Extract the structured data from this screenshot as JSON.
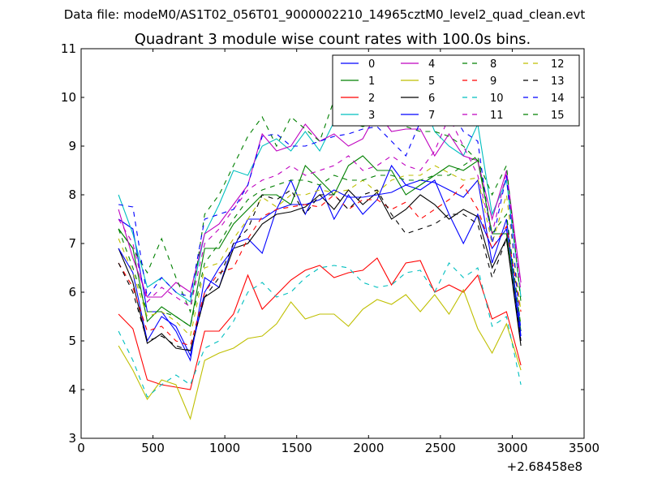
{
  "chart_data": {
    "type": "line",
    "suptitle": "Data file: modeM0/AS1T02_056T01_9000002210_14965cztM0_level2_quad_clean.evt",
    "title": "Quadrant 3 module wise count rates with 100.0s bins.",
    "xlabel": "",
    "ylabel": "",
    "x_offset_label": "+2.68458e8",
    "xlim": [
      0,
      3500
    ],
    "ylim": [
      3,
      11
    ],
    "x_ticks": [
      0,
      500,
      1000,
      1500,
      2000,
      2500,
      3000,
      3500
    ],
    "y_ticks": [
      3,
      4,
      5,
      6,
      7,
      8,
      9,
      10,
      11
    ],
    "legend_position": "top-right",
    "x": [
      260,
      360,
      460,
      560,
      660,
      760,
      860,
      960,
      1060,
      1160,
      1260,
      1360,
      1460,
      1560,
      1660,
      1760,
      1860,
      1960,
      2060,
      2160,
      2260,
      2360,
      2460,
      2560,
      2660,
      2760,
      2860,
      2960,
      3060
    ],
    "series": [
      {
        "name": "0",
        "color": "#0000ff",
        "dash": "solid",
        "values": [
          7.5,
          7.3,
          5.6,
          5.6,
          5.2,
          4.6,
          6.3,
          6.1,
          7.0,
          7.1,
          6.8,
          7.7,
          8.3,
          7.6,
          8.2,
          7.5,
          8.0,
          7.6,
          7.9,
          8.6,
          8.2,
          8.1,
          8.3,
          7.6,
          7.0,
          7.6,
          6.9,
          7.3,
          5.0
        ]
      },
      {
        "name": "1",
        "color": "#008000",
        "dash": "solid",
        "values": [
          7.3,
          6.9,
          5.4,
          5.7,
          5.5,
          5.3,
          6.9,
          6.9,
          7.4,
          7.7,
          8.0,
          8.0,
          7.8,
          8.6,
          8.3,
          8.0,
          8.6,
          8.8,
          8.5,
          8.5,
          8.0,
          8.2,
          8.4,
          8.6,
          8.5,
          8.7,
          7.2,
          7.2,
          5.2
        ]
      },
      {
        "name": "2",
        "color": "#ff0000",
        "dash": "solid",
        "values": [
          5.55,
          5.25,
          4.2,
          4.1,
          4.05,
          4.0,
          5.2,
          5.2,
          5.55,
          6.35,
          5.65,
          5.95,
          6.25,
          6.45,
          6.55,
          6.3,
          6.4,
          6.45,
          6.7,
          6.15,
          6.6,
          6.65,
          6.0,
          6.15,
          6.0,
          6.35,
          5.45,
          5.6,
          4.5
        ]
      },
      {
        "name": "3",
        "color": "#00bfbf",
        "dash": "solid",
        "values": [
          8.0,
          7.2,
          6.1,
          6.3,
          6.0,
          5.8,
          7.2,
          7.8,
          8.5,
          8.4,
          9.0,
          9.15,
          8.9,
          9.3,
          8.9,
          9.5,
          9.45,
          9.6,
          10.05,
          9.5,
          9.7,
          10.05,
          9.3,
          9.0,
          8.8,
          9.45,
          7.6,
          8.3,
          5.9
        ]
      },
      {
        "name": "4",
        "color": "#bf00bf",
        "dash": "solid",
        "values": [
          7.7,
          6.7,
          5.9,
          5.9,
          6.2,
          6.0,
          7.2,
          7.4,
          7.8,
          8.2,
          9.25,
          8.9,
          9.0,
          9.45,
          9.1,
          9.25,
          9.0,
          9.15,
          9.7,
          9.3,
          9.35,
          9.35,
          8.8,
          9.25,
          8.8,
          8.7,
          7.5,
          8.5,
          6.2
        ]
      },
      {
        "name": "5",
        "color": "#bfbf00",
        "dash": "solid",
        "values": [
          4.9,
          4.4,
          3.8,
          4.2,
          4.1,
          3.4,
          4.6,
          4.75,
          4.85,
          5.05,
          5.1,
          5.35,
          5.8,
          5.45,
          5.55,
          5.55,
          5.3,
          5.65,
          5.85,
          5.75,
          5.95,
          5.6,
          5.95,
          5.55,
          6.05,
          5.25,
          4.75,
          5.35,
          4.4
        ]
      },
      {
        "name": "6",
        "color": "#000000",
        "dash": "solid",
        "values": [
          6.9,
          6.2,
          4.95,
          5.15,
          4.85,
          4.8,
          5.9,
          6.1,
          6.9,
          7.0,
          7.4,
          7.6,
          7.65,
          7.75,
          8.0,
          7.7,
          8.1,
          7.8,
          8.05,
          7.5,
          7.7,
          8.0,
          7.8,
          7.5,
          7.7,
          7.55,
          6.5,
          7.1,
          4.9
        ]
      },
      {
        "name": "7",
        "color": "#0000ff",
        "dash": "solid",
        "values": [
          6.9,
          6.4,
          5.0,
          5.5,
          5.3,
          4.7,
          6.0,
          6.5,
          6.9,
          7.5,
          7.5,
          7.7,
          7.8,
          7.8,
          7.9,
          8.1,
          7.95,
          7.95,
          8.0,
          8.05,
          8.2,
          8.3,
          8.25,
          8.1,
          7.95,
          8.3,
          6.6,
          7.5,
          5.1
        ]
      },
      {
        "name": "8",
        "color": "#008000",
        "dash": "dashed",
        "values": [
          7.3,
          6.9,
          6.4,
          7.1,
          6.3,
          5.6,
          7.6,
          8.0,
          8.6,
          9.2,
          9.6,
          9.0,
          9.6,
          9.35,
          9.1,
          9.95,
          9.5,
          9.4,
          9.5,
          9.5,
          9.4,
          9.3,
          9.3,
          9.2,
          9.0,
          8.7,
          8.0,
          8.6,
          5.8
        ]
      },
      {
        "name": "9",
        "color": "#ff0000",
        "dash": "dashed",
        "values": [
          6.6,
          6.1,
          5.2,
          5.3,
          5.0,
          4.9,
          6.0,
          6.4,
          6.5,
          7.1,
          7.55,
          7.7,
          7.75,
          7.8,
          7.75,
          8.0,
          7.7,
          7.9,
          7.9,
          7.7,
          7.85,
          7.5,
          7.7,
          7.9,
          8.2,
          7.7,
          6.9,
          7.35,
          5.6
        ]
      },
      {
        "name": "10",
        "color": "#00bfbf",
        "dash": "dashed",
        "values": [
          5.2,
          4.6,
          3.85,
          4.1,
          4.3,
          4.1,
          4.85,
          5.0,
          5.4,
          6.0,
          6.2,
          5.9,
          6.0,
          6.3,
          6.5,
          6.55,
          6.5,
          6.2,
          6.1,
          6.15,
          6.4,
          6.45,
          6.0,
          6.6,
          6.3,
          6.5,
          5.3,
          5.5,
          4.1
        ]
      },
      {
        "name": "11",
        "color": "#bf00bf",
        "dash": "dashed",
        "values": [
          7.5,
          7.0,
          5.8,
          6.1,
          5.9,
          5.7,
          7.0,
          7.3,
          7.7,
          8.1,
          8.3,
          8.4,
          8.6,
          8.4,
          8.5,
          8.6,
          8.8,
          8.5,
          8.6,
          8.8,
          8.6,
          8.5,
          8.9,
          9.6,
          9.0,
          8.4,
          7.2,
          8.45,
          6.0
        ]
      },
      {
        "name": "12",
        "color": "#bfbf00",
        "dash": "dashed",
        "values": [
          7.1,
          6.4,
          5.5,
          5.6,
          5.4,
          5.1,
          6.5,
          6.6,
          7.1,
          7.5,
          7.95,
          7.75,
          8.0,
          8.0,
          8.1,
          8.05,
          8.1,
          8.3,
          8.05,
          8.3,
          8.4,
          8.4,
          8.6,
          8.45,
          8.3,
          8.35,
          7.0,
          8.0,
          5.6
        ]
      },
      {
        "name": "13",
        "color": "#000000",
        "dash": "dashed",
        "values": [
          6.6,
          6.0,
          5.0,
          5.1,
          4.9,
          4.8,
          5.9,
          6.3,
          7.0,
          7.3,
          8.0,
          7.9,
          8.1,
          7.6,
          8.0,
          8.0,
          7.7,
          8.0,
          8.1,
          7.6,
          7.2,
          7.3,
          7.4,
          7.6,
          7.6,
          7.4,
          6.3,
          7.1,
          5.0
        ]
      },
      {
        "name": "14",
        "color": "#0000ff",
        "dash": "dashed",
        "values": [
          7.8,
          7.75,
          5.9,
          6.3,
          6.0,
          5.9,
          7.5,
          7.6,
          7.7,
          8.2,
          9.2,
          9.25,
          9.0,
          9.0,
          9.1,
          9.2,
          9.25,
          9.35,
          9.4,
          9.1,
          8.8,
          9.5,
          9.5,
          9.8,
          9.3,
          9.1,
          7.0,
          8.4,
          5.2
        ]
      },
      {
        "name": "15",
        "color": "#008000",
        "dash": "dashed",
        "values": [
          7.3,
          6.5,
          5.6,
          5.6,
          5.5,
          5.3,
          6.6,
          7.0,
          7.5,
          7.9,
          8.1,
          8.2,
          8.3,
          8.3,
          8.2,
          8.4,
          8.3,
          8.3,
          8.4,
          8.4,
          8.3,
          8.3,
          8.4,
          8.4,
          8.6,
          8.8,
          7.2,
          7.6,
          5.3
        ]
      }
    ]
  }
}
